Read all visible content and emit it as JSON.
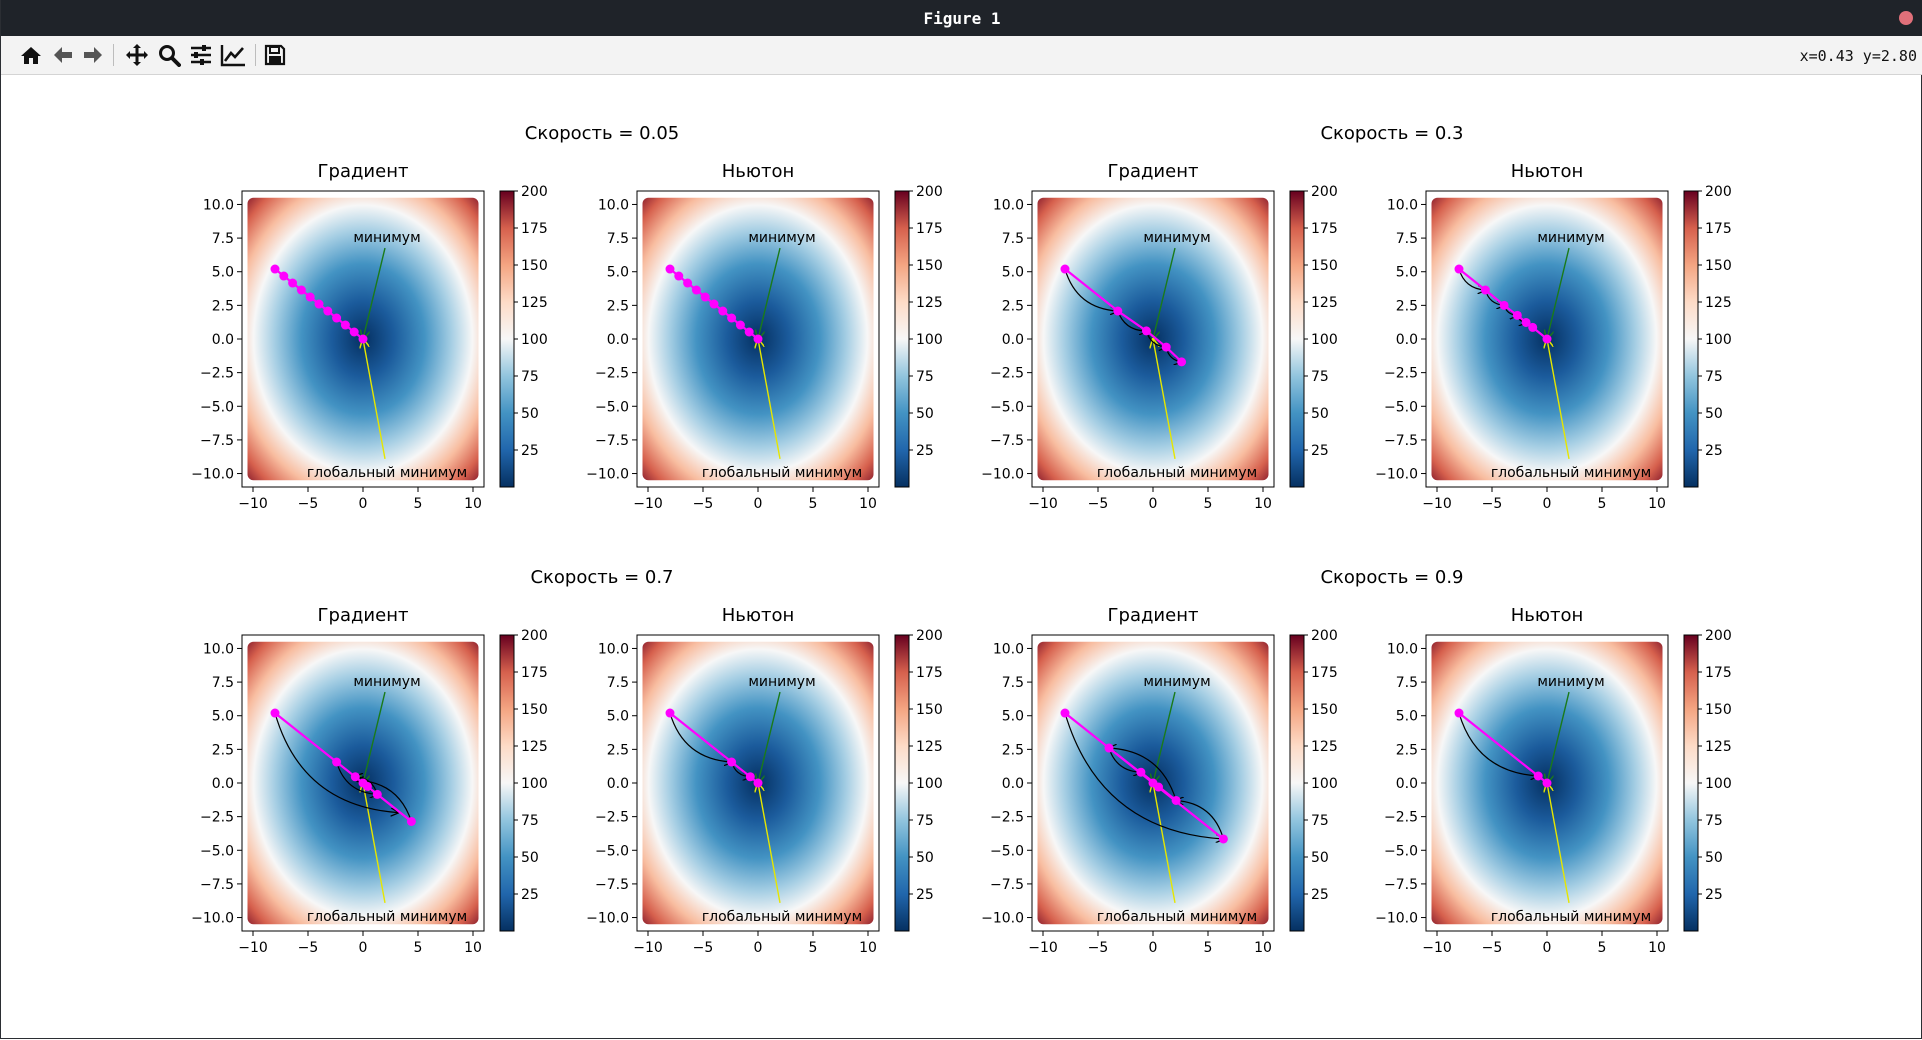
{
  "window": {
    "title": "Figure 1"
  },
  "toolbar": {
    "buttons": [
      {
        "icon": "home-icon"
      },
      {
        "icon": "back-arrow-icon"
      },
      {
        "icon": "forward-arrow-icon"
      },
      {
        "icon": "pan-icon"
      },
      {
        "icon": "zoom-icon"
      },
      {
        "icon": "subplots-config-icon"
      },
      {
        "icon": "edit-axis-icon"
      },
      {
        "icon": "save-icon"
      }
    ],
    "coords": "x=0.43 y=2.80"
  },
  "chart_data": [
    {
      "type": "heatmap",
      "subtitle": "Скорость = 0.05",
      "title": "Градиент",
      "xlim": [
        -11,
        11
      ],
      "ylim": [
        -11,
        11
      ],
      "xticks": [
        -10,
        -5,
        0,
        5,
        10
      ],
      "yticks": [
        -10,
        -7.5,
        -5,
        -2.5,
        0,
        2.5,
        5,
        7.5,
        10
      ],
      "colorbar_ticks": [
        25,
        50,
        75,
        100,
        125,
        150,
        175,
        200
      ],
      "colorbar_range": [
        0,
        200
      ],
      "annotations": [
        {
          "text": "минимум",
          "text_at": [
            2,
            7.5
          ],
          "arrow_to": [
            0,
            0
          ]
        },
        {
          "text": "глобальный минимум",
          "text_at": [
            2,
            -9.5
          ],
          "arrow_to": [
            0,
            0
          ]
        }
      ],
      "path": [
        [
          -8,
          5.2
        ],
        [
          -7.2,
          4.68
        ],
        [
          -6.4,
          4.16
        ],
        [
          -5.6,
          3.64
        ],
        [
          -4.8,
          3.12
        ],
        [
          -4,
          2.6
        ],
        [
          -3.2,
          2.08
        ],
        [
          -2.4,
          1.56
        ],
        [
          -1.6,
          1.04
        ],
        [
          -0.8,
          0.52
        ],
        [
          0,
          0
        ]
      ],
      "arrows": []
    },
    {
      "type": "heatmap",
      "subtitle": "",
      "title": "Ньютон",
      "xlim": [
        -11,
        11
      ],
      "ylim": [
        -11,
        11
      ],
      "xticks": [
        -10,
        -5,
        0,
        5,
        10
      ],
      "yticks": [
        -10,
        -7.5,
        -5,
        -2.5,
        0,
        2.5,
        5,
        7.5,
        10
      ],
      "colorbar_ticks": [
        25,
        50,
        75,
        100,
        125,
        150,
        175,
        200
      ],
      "colorbar_range": [
        0,
        200
      ],
      "annotations": [
        {
          "text": "минимум",
          "text_at": [
            2,
            7.5
          ],
          "arrow_to": [
            0,
            0
          ]
        },
        {
          "text": "глобальный минимум",
          "text_at": [
            2,
            -9.5
          ],
          "arrow_to": [
            0,
            0
          ]
        }
      ],
      "path": [
        [
          -8,
          5.2
        ],
        [
          -7.2,
          4.68
        ],
        [
          -6.4,
          4.16
        ],
        [
          -5.6,
          3.64
        ],
        [
          -4.8,
          3.12
        ],
        [
          -4,
          2.6
        ],
        [
          -3.2,
          2.08
        ],
        [
          -2.4,
          1.56
        ],
        [
          -1.6,
          1.04
        ],
        [
          -0.8,
          0.52
        ],
        [
          0,
          0
        ]
      ],
      "arrows": []
    },
    {
      "type": "heatmap",
      "subtitle": "Скорость = 0.3",
      "title": "Градиент",
      "xlim": [
        -11,
        11
      ],
      "ylim": [
        -11,
        11
      ],
      "xticks": [
        -10,
        -5,
        0,
        5,
        10
      ],
      "yticks": [
        -10,
        -7.5,
        -5,
        -2.5,
        0,
        2.5,
        5,
        7.5,
        10
      ],
      "colorbar_ticks": [
        25,
        50,
        75,
        100,
        125,
        150,
        175,
        200
      ],
      "colorbar_range": [
        0,
        200
      ],
      "annotations": [
        {
          "text": "минимум",
          "text_at": [
            2,
            7.5
          ],
          "arrow_to": [
            0,
            0
          ]
        },
        {
          "text": "глобальный минимум",
          "text_at": [
            2,
            -9.5
          ],
          "arrow_to": [
            0,
            0
          ]
        }
      ],
      "path": [
        [
          -8,
          5.2
        ],
        [
          -3.2,
          2.08
        ],
        [
          -0.6,
          0.6
        ],
        [
          1.2,
          -0.6
        ],
        [
          2.6,
          -1.7
        ]
      ],
      "arrows": [
        [
          [
            -8,
            5.2
          ],
          [
            -3.2,
            2.08
          ]
        ],
        [
          [
            -3.2,
            2.08
          ],
          [
            -0.6,
            0.6
          ]
        ],
        [
          [
            -0.6,
            0.6
          ],
          [
            1.2,
            -0.6
          ]
        ],
        [
          [
            1.2,
            -0.6
          ],
          [
            2.6,
            -1.7
          ]
        ]
      ]
    },
    {
      "type": "heatmap",
      "subtitle": "",
      "title": "Ньютон",
      "xlim": [
        -11,
        11
      ],
      "ylim": [
        -11,
        11
      ],
      "xticks": [
        -10,
        -5,
        0,
        5,
        10
      ],
      "yticks": [
        -10,
        -7.5,
        -5,
        -2.5,
        0,
        2.5,
        5,
        7.5,
        10
      ],
      "colorbar_ticks": [
        25,
        50,
        75,
        100,
        125,
        150,
        175,
        200
      ],
      "colorbar_range": [
        0,
        200
      ],
      "annotations": [
        {
          "text": "минимум",
          "text_at": [
            2,
            7.5
          ],
          "arrow_to": [
            0,
            0
          ]
        },
        {
          "text": "глобальный минимум",
          "text_at": [
            2,
            -9.5
          ],
          "arrow_to": [
            0,
            0
          ]
        }
      ],
      "path": [
        [
          -8,
          5.2
        ],
        [
          -5.6,
          3.64
        ],
        [
          -3.9,
          2.5
        ],
        [
          -2.7,
          1.76
        ],
        [
          -1.9,
          1.23
        ],
        [
          -1.3,
          0.86
        ],
        [
          0,
          0
        ]
      ],
      "arrows": [
        [
          [
            -8,
            5.2
          ],
          [
            -5.6,
            3.64
          ]
        ],
        [
          [
            -5.6,
            3.64
          ],
          [
            -3.9,
            2.5
          ]
        ],
        [
          [
            -3.9,
            2.5
          ],
          [
            -2.7,
            1.76
          ]
        ],
        [
          [
            -2.7,
            1.76
          ],
          [
            -1.9,
            1.23
          ]
        ]
      ]
    },
    {
      "type": "heatmap",
      "subtitle": "Скорость = 0.7",
      "title": "Градиент",
      "xlim": [
        -11,
        11
      ],
      "ylim": [
        -11,
        11
      ],
      "xticks": [
        -10,
        -5,
        0,
        5,
        10
      ],
      "yticks": [
        -10,
        -7.5,
        -5,
        -2.5,
        0,
        2.5,
        5,
        7.5,
        10
      ],
      "colorbar_ticks": [
        25,
        50,
        75,
        100,
        125,
        150,
        175,
        200
      ],
      "colorbar_range": [
        0,
        200
      ],
      "annotations": [
        {
          "text": "минимум",
          "text_at": [
            2,
            7.5
          ],
          "arrow_to": [
            0,
            0
          ]
        },
        {
          "text": "глобальный минимум",
          "text_at": [
            2,
            -9.5
          ],
          "arrow_to": [
            0,
            0
          ]
        }
      ],
      "path": [
        [
          -8,
          5.2
        ],
        [
          4.4,
          -2.86
        ],
        [
          -2.4,
          1.56
        ],
        [
          1.3,
          -0.85
        ],
        [
          -0.7,
          0.46
        ],
        [
          0.4,
          -0.25
        ],
        [
          0,
          0
        ]
      ],
      "arrows": [
        [
          [
            -8,
            5.2
          ],
          [
            3.2,
            -2.2
          ]
        ],
        [
          [
            4.4,
            -2.86
          ],
          [
            -0.6,
            0.2
          ]
        ],
        [
          [
            -2.4,
            1.56
          ],
          [
            1.3,
            -0.85
          ]
        ],
        [
          [
            1.3,
            -0.85
          ],
          [
            -0.7,
            0.46
          ]
        ]
      ]
    },
    {
      "type": "heatmap",
      "subtitle": "",
      "title": "Ньютон",
      "xlim": [
        -11,
        11
      ],
      "ylim": [
        -11,
        11
      ],
      "xticks": [
        -10,
        -5,
        0,
        5,
        10
      ],
      "yticks": [
        -10,
        -7.5,
        -5,
        -2.5,
        0,
        2.5,
        5,
        7.5,
        10
      ],
      "colorbar_ticks": [
        25,
        50,
        75,
        100,
        125,
        150,
        175,
        200
      ],
      "colorbar_range": [
        0,
        200
      ],
      "annotations": [
        {
          "text": "минимум",
          "text_at": [
            2,
            7.5
          ],
          "arrow_to": [
            0,
            0
          ]
        },
        {
          "text": "глобальный минимум",
          "text_at": [
            2,
            -9.5
          ],
          "arrow_to": [
            0,
            0
          ]
        }
      ],
      "path": [
        [
          -8,
          5.2
        ],
        [
          -2.4,
          1.56
        ],
        [
          -0.7,
          0.46
        ],
        [
          0,
          0
        ]
      ],
      "arrows": [
        [
          [
            -8,
            5.2
          ],
          [
            -2.4,
            1.56
          ]
        ],
        [
          [
            -2.4,
            1.56
          ],
          [
            -0.7,
            0.46
          ]
        ]
      ]
    },
    {
      "type": "heatmap",
      "subtitle": "Скорость = 0.9",
      "title": "Градиент",
      "xlim": [
        -11,
        11
      ],
      "ylim": [
        -11,
        11
      ],
      "xticks": [
        -10,
        -5,
        0,
        5,
        10
      ],
      "yticks": [
        -10,
        -7.5,
        -5,
        -2.5,
        0,
        2.5,
        5,
        7.5,
        10
      ],
      "colorbar_ticks": [
        25,
        50,
        75,
        100,
        125,
        150,
        175,
        200
      ],
      "colorbar_range": [
        0,
        200
      ],
      "annotations": [
        {
          "text": "минимум",
          "text_at": [
            2,
            7.5
          ],
          "arrow_to": [
            0,
            0
          ]
        },
        {
          "text": "глобальный минимум",
          "text_at": [
            2,
            -9.5
          ],
          "arrow_to": [
            0,
            0
          ]
        }
      ],
      "path": [
        [
          -8,
          5.2
        ],
        [
          6.4,
          -4.16
        ],
        [
          -4,
          2.6
        ],
        [
          2.1,
          -1.3
        ],
        [
          -1.1,
          0.8
        ],
        [
          0.5,
          -0.3
        ],
        [
          0,
          0
        ]
      ],
      "arrows": [
        [
          [
            -8,
            5.2
          ],
          [
            6.4,
            -4.16
          ]
        ],
        [
          [
            6.4,
            -4.16
          ],
          [
            2.1,
            -1.3
          ]
        ],
        [
          [
            2.1,
            -1.3
          ],
          [
            -4,
            2.6
          ]
        ],
        [
          [
            -4,
            2.6
          ],
          [
            -1.1,
            0.8
          ]
        ]
      ]
    },
    {
      "type": "heatmap",
      "subtitle": "",
      "title": "Ньютон",
      "xlim": [
        -11,
        11
      ],
      "ylim": [
        -11,
        11
      ],
      "xticks": [
        -10,
        -5,
        0,
        5,
        10
      ],
      "yticks": [
        -10,
        -7.5,
        -5,
        -2.5,
        0,
        2.5,
        5,
        7.5,
        10
      ],
      "colorbar_ticks": [
        25,
        50,
        75,
        100,
        125,
        150,
        175,
        200
      ],
      "colorbar_range": [
        0,
        200
      ],
      "annotations": [
        {
          "text": "минимум",
          "text_at": [
            2,
            7.5
          ],
          "arrow_to": [
            0,
            0
          ]
        },
        {
          "text": "глобальный минимум",
          "text_at": [
            2,
            -9.5
          ],
          "arrow_to": [
            0,
            0
          ]
        }
      ],
      "path": [
        [
          -8,
          5.2
        ],
        [
          -0.8,
          0.52
        ],
        [
          0,
          0
        ]
      ],
      "arrows": [
        [
          [
            -8,
            5.2
          ],
          [
            -0.8,
            0.52
          ]
        ]
      ]
    }
  ]
}
